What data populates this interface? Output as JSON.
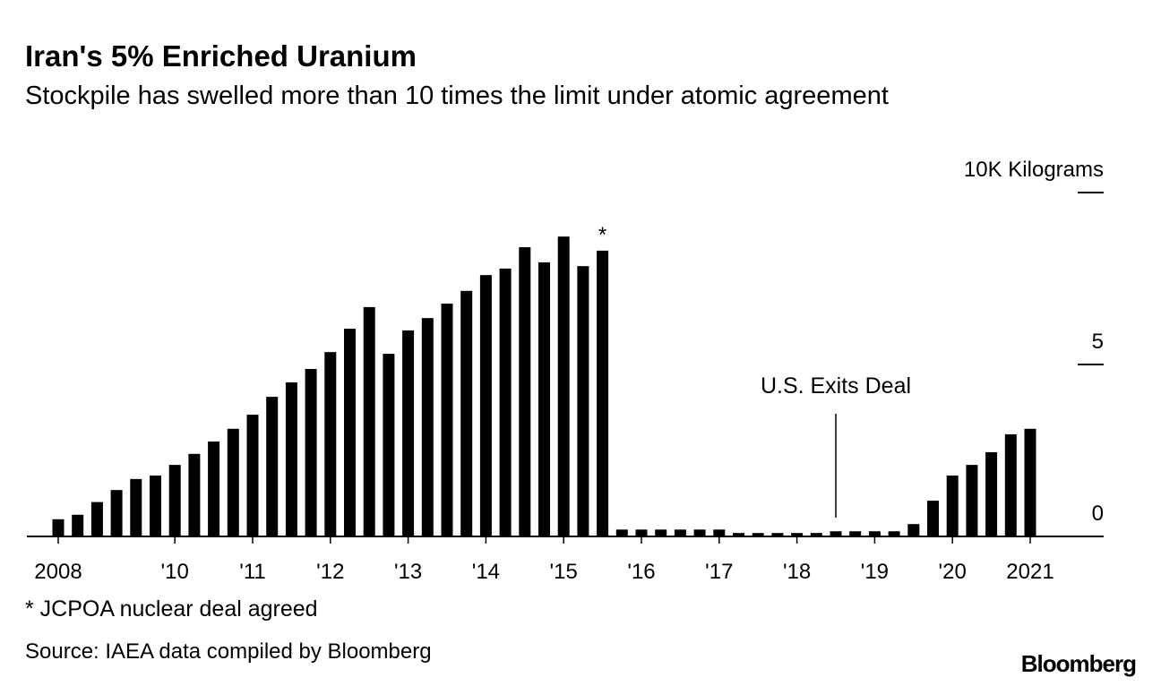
{
  "chart_data": {
    "type": "bar",
    "title": "Iran's 5% Enriched Uranium",
    "subtitle": "Stockpile has swelled more than 10 times the limit under atomic agreement",
    "categories": [
      "2008",
      null,
      null,
      null,
      null,
      null,
      "'10",
      null,
      null,
      null,
      "'11",
      null,
      null,
      null,
      "'12",
      null,
      null,
      null,
      "'13",
      null,
      null,
      null,
      "'14",
      null,
      null,
      null,
      "'15",
      null,
      null,
      null,
      "'16",
      null,
      null,
      null,
      "'17",
      null,
      null,
      null,
      "'18",
      null,
      null,
      null,
      "'19",
      null,
      null,
      null,
      "'20",
      null,
      null,
      null,
      "2021"
    ],
    "values": [
      0.5,
      0.63,
      1.0,
      1.35,
      1.67,
      1.77,
      2.08,
      2.4,
      2.76,
      3.13,
      3.54,
      4.06,
      4.48,
      4.87,
      5.36,
      6.04,
      6.67,
      5.31,
      5.99,
      6.35,
      6.77,
      7.14,
      7.6,
      7.79,
      8.41,
      7.97,
      8.72,
      7.86,
      8.31,
      0.2,
      0.2,
      0.2,
      0.2,
      0.2,
      0.2,
      0.1,
      0.1,
      0.1,
      0.1,
      0.1,
      0.15,
      0.15,
      0.15,
      0.15,
      0.36,
      1.04,
      1.77,
      2.08,
      2.45,
      2.97,
      3.13
    ],
    "color": "#000000",
    "ylim": [
      0,
      10
    ],
    "yticks": [
      0,
      5,
      {
        "value": 10,
        "label": "10K Kilograms"
      }
    ],
    "annotations": [
      "*",
      "U.S. Exits Deal"
    ],
    "footnote": "* JCPOA nuclear deal agreed",
    "source": "Source: IAEA data compiled by Bloomberg",
    "logo": "Bloomberg"
  }
}
